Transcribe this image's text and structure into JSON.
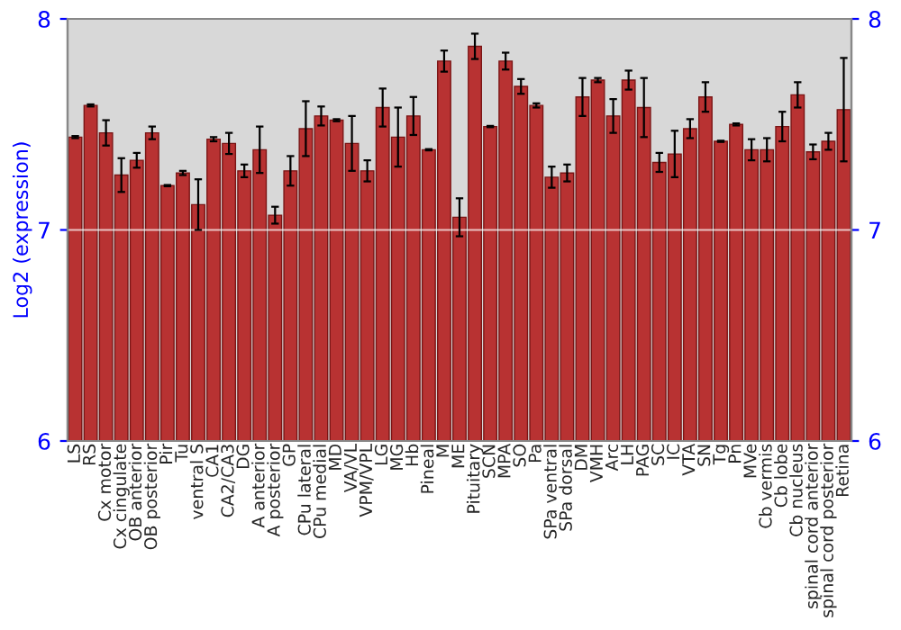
{
  "chart_data": {
    "type": "bar",
    "ylabel": "Log2 (expression)",
    "categories": [
      "LS",
      "RS",
      "Cx motor",
      "Cx cingulate",
      "OB anterior",
      "OB posterior",
      "Pir",
      "Tu",
      "ventral S",
      "CA1",
      "CA2/CA3",
      "DG",
      "A anterior",
      "A posterior",
      "GP",
      "CPu lateral",
      "CPu medial",
      "MD",
      "VA/VL",
      "VPM/VPL",
      "LG",
      "MG",
      "Hb",
      "Pineal",
      "M",
      "ME",
      "Pituitary",
      "SCN",
      "MPA",
      "SO",
      "Pa",
      "SPa ventral",
      "SPa dorsal",
      "DM",
      "VMH",
      "Arc",
      "LH",
      "PAG",
      "SC",
      "IC",
      "VTA",
      "SN",
      "Tg",
      "Pn",
      "MVe",
      "Cb vermis",
      "Cb lobe",
      "Cb nucleus",
      "spinal cord anterior",
      "spinal cord posterior",
      "Retina"
    ],
    "values": [
      7.44,
      7.59,
      7.46,
      7.26,
      7.33,
      7.46,
      7.21,
      7.27,
      7.12,
      7.43,
      7.41,
      7.28,
      7.38,
      7.07,
      7.28,
      7.48,
      7.54,
      7.52,
      7.41,
      7.28,
      7.58,
      7.44,
      7.54,
      7.38,
      7.8,
      7.06,
      7.87,
      7.49,
      7.8,
      7.68,
      7.59,
      7.25,
      7.27,
      7.63,
      7.71,
      7.54,
      7.71,
      7.58,
      7.32,
      7.36,
      7.48,
      7.63,
      7.42,
      7.5,
      7.38,
      7.38,
      7.49,
      7.64,
      7.37,
      7.42,
      7.57
    ],
    "errors": [
      0.005,
      0.005,
      0.06,
      0.08,
      0.035,
      0.03,
      0.003,
      0.01,
      0.12,
      0.01,
      0.05,
      0.03,
      0.11,
      0.04,
      0.07,
      0.13,
      0.045,
      0.005,
      0.13,
      0.05,
      0.09,
      0.14,
      0.09,
      0.003,
      0.05,
      0.09,
      0.06,
      0.003,
      0.04,
      0.035,
      0.01,
      0.05,
      0.04,
      0.09,
      0.01,
      0.08,
      0.045,
      0.14,
      0.045,
      0.11,
      0.045,
      0.07,
      0.003,
      0.005,
      0.05,
      0.055,
      0.07,
      0.06,
      0.035,
      0.04,
      0.245
    ],
    "color": "#b83232",
    "ylim": [
      6,
      8
    ],
    "yticks": [
      6,
      7,
      8
    ],
    "y2lim": [
      6,
      8
    ],
    "y2ticks": [
      6,
      7,
      8
    ],
    "grid": "y"
  }
}
